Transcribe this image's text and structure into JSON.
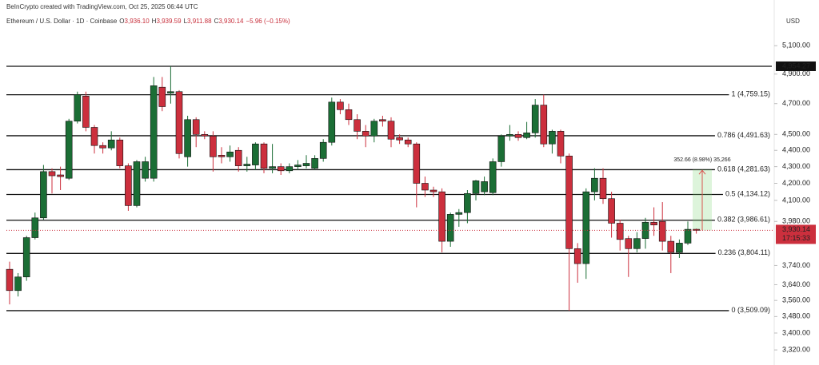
{
  "header": {
    "credit": "BeInCrypto created with TradingView.com, Oct 25, 2025 06:44 UTC",
    "symbol": "Ethereum / U.S. Dollar · 1D · Coinbase",
    "ohlc": [
      {
        "key": "O",
        "label": "3,936.10"
      },
      {
        "key": "H",
        "label": "3,939.59"
      },
      {
        "key": "L",
        "label": "3,911.88"
      },
      {
        "key": "C",
        "label": "3,930.14"
      }
    ],
    "change": "−5.96 (−0.15%)",
    "currency": "USD"
  },
  "chart_data": {
    "type": "candlestick",
    "log_scale": true,
    "up_color": "#1b6e35",
    "down_color": "#cc2f3d",
    "open": [
      3720,
      3610,
      3680,
      3890,
      4000,
      4270,
      4250,
      4230,
      4585,
      4750,
      4545,
      4430,
      4415,
      4465,
      4305,
      4070,
      4230,
      4230,
      4810,
      4770,
      4780,
      4360,
      4595,
      4500,
      4490,
      4370,
      4360,
      4400,
      4305,
      4310,
      4440,
      4290,
      4300,
      4275,
      4300,
      4305,
      4290,
      4350,
      4450,
      4710,
      4660,
      4595,
      4520,
      4490,
      4595,
      4585,
      4480,
      4465,
      4440,
      4200,
      4160,
      4150,
      3870,
      4020,
      4030,
      4140,
      4150,
      4145,
      4330,
      4490,
      4500,
      4480,
      4510,
      4690,
      4440,
      4520,
      4365,
      3830,
      3750,
      4150,
      4230,
      4110,
      3970,
      3885,
      3830,
      3885,
      3975,
      3980,
      3870,
      3810,
      3860,
      3936.1
    ],
    "high": [
      3760,
      3700,
      3900,
      4030,
      4310,
      4290,
      4300,
      4600,
      4780,
      4780,
      4560,
      4450,
      4520,
      4480,
      4320,
      4340,
      4360,
      4880,
      4880,
      4954.27,
      4790,
      4620,
      4610,
      4520,
      4520,
      4420,
      4430,
      4420,
      4360,
      4450,
      4450,
      4440,
      4320,
      4320,
      4340,
      4370,
      4370,
      4470,
      4740,
      4730,
      4700,
      4630,
      4560,
      4600,
      4620,
      4610,
      4500,
      4480,
      4450,
      4240,
      4180,
      4170,
      4030,
      4050,
      4160,
      4220,
      4240,
      4350,
      4500,
      4560,
      4520,
      4580,
      4730,
      4759.15,
      4530,
      4530,
      4380,
      3860,
      4170,
      4290,
      4290,
      4150,
      3990,
      3900,
      3920,
      4000,
      4060,
      4090,
      3900,
      3880,
      3980,
      3939.59
    ],
    "low": [
      3540,
      3580,
      3660,
      3880,
      3990,
      4140,
      4160,
      4220,
      4570,
      4520,
      4380,
      4380,
      4400,
      4290,
      4040,
      4060,
      4210,
      4210,
      4650,
      4700,
      4350,
      4300,
      4420,
      4470,
      4270,
      4320,
      4330,
      4270,
      4270,
      4280,
      4260,
      4260,
      4250,
      4260,
      4280,
      4290,
      4280,
      4330,
      4430,
      4630,
      4560,
      4470,
      4420,
      4450,
      4550,
      4420,
      4440,
      4420,
      4060,
      4120,
      4120,
      3810,
      3840,
      3950,
      3970,
      4100,
      4130,
      4130,
      4300,
      4460,
      4460,
      4470,
      4480,
      4420,
      4380,
      4320,
      3509.09,
      3650,
      3670,
      4100,
      4080,
      3890,
      3820,
      3680,
      3810,
      3830,
      3900,
      3820,
      3700,
      3780,
      3850,
      3911.88
    ],
    "close": [
      3610,
      3680,
      3890,
      4000,
      4270,
      4245,
      4240,
      4585,
      4760,
      4545,
      4430,
      4415,
      4465,
      4305,
      4070,
      4330,
      4330,
      4820,
      4680,
      4780,
      4380,
      4595,
      4500,
      4490,
      4360,
      4360,
      4390,
      4305,
      4315,
      4440,
      4290,
      4300,
      4275,
      4300,
      4310,
      4320,
      4350,
      4450,
      4710,
      4660,
      4595,
      4520,
      4490,
      4585,
      4585,
      4470,
      4465,
      4440,
      4200,
      4160,
      4150,
      3870,
      4020,
      4030,
      4140,
      4215,
      4210,
      4330,
      4490,
      4500,
      4480,
      4510,
      4690,
      4440,
      4520,
      4365,
      3830,
      3750,
      4150,
      4230,
      4110,
      3970,
      3880,
      3830,
      3885,
      3975,
      3960,
      3870,
      3810,
      3860,
      3936,
      3930.14
    ],
    "ylim": [
      3250,
      5440
    ],
    "yticks": [
      {
        "value": 5100,
        "label": "5,100.00"
      },
      {
        "value": 4900,
        "label": "4,900.00"
      },
      {
        "value": 4700,
        "label": "4,700.00"
      },
      {
        "value": 4500,
        "label": "4,500.00"
      },
      {
        "value": 4400,
        "label": "4,400.00"
      },
      {
        "value": 4300,
        "label": "4,300.00"
      },
      {
        "value": 4200,
        "label": "4,200.00"
      },
      {
        "value": 4100,
        "label": "4,100.00"
      },
      {
        "value": 3980,
        "label": "3,980.00"
      },
      {
        "value": 3740,
        "label": "3,740.00"
      },
      {
        "value": 3640,
        "label": "3,640.00"
      },
      {
        "value": 3560,
        "label": "3,560.00"
      },
      {
        "value": 3480,
        "label": "3,480.00"
      },
      {
        "value": 3400,
        "label": "3,400.00"
      },
      {
        "value": 3320,
        "label": "3,320.00"
      }
    ],
    "high_marker": {
      "value": 4954.27,
      "label": "4,954.27"
    },
    "levels": [
      {
        "value": 4759.15,
        "label": "1 (4,759.15)"
      },
      {
        "value": 4491.63,
        "label": "0.786 (4,491.63)"
      },
      {
        "value": 4281.63,
        "label": "0.618 (4,281.63)"
      },
      {
        "value": 4134.12,
        "label": "0.5 (4,134.12)"
      },
      {
        "value": 3986.61,
        "label": "0.382 (3,986.61)"
      },
      {
        "value": 3804.11,
        "label": "0.236 (3,804.11)"
      },
      {
        "value": 3509.09,
        "label": "0 (3,509.09)"
      }
    ],
    "last_price": {
      "value": 3930.14,
      "label": "3,930.14",
      "countdown": "17:15:33"
    },
    "measure": {
      "from": 3930.14,
      "to": 4282.8,
      "label": "352.66 (8.98%) 35,266"
    }
  }
}
